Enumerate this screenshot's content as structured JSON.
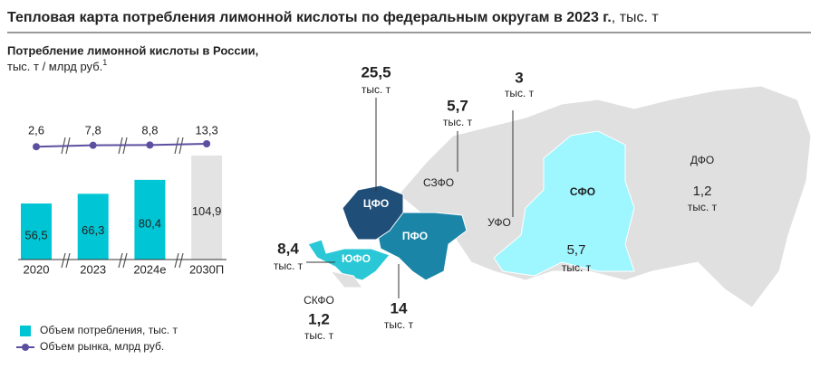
{
  "title": "Тепловая карта потребления лимонной кислоты по федеральным округам в 2023 г.",
  "title_unit": ", тыс. т",
  "chart_data": {
    "type": "bar",
    "title": "Потребление лимонной кислоты в России,",
    "subtitle": "тыс. т / млрд руб.",
    "footnote_ref": "1",
    "categories": [
      "2020",
      "2023",
      "2024е",
      "2030П"
    ],
    "series": [
      {
        "name": "Объем потребления, тыс. т",
        "type": "bar",
        "color": "#00c5d4",
        "colors": [
          "#00c5d4",
          "#00c5d4",
          "#00c5d4",
          "#e3e3e3"
        ],
        "values": [
          56.5,
          66.3,
          80.4,
          104.9
        ],
        "value_labels": [
          "56,5",
          "66,3",
          "80,4",
          "104,9"
        ]
      },
      {
        "name": "Объем рынка, млрд руб.",
        "type": "line",
        "color": "#5b4fa0",
        "values": [
          2.6,
          7.8,
          8.8,
          13.3
        ],
        "value_labels": [
          "2,6",
          "7,8",
          "8,8",
          "13,3"
        ]
      }
    ]
  },
  "map": {
    "unit": "тыс. т",
    "regions": [
      {
        "name": "ЦФО",
        "value": 25.5,
        "value_label": "25,5",
        "color": "#1f4e79"
      },
      {
        "name": "СЗФО",
        "value": 5.7,
        "value_label": "5,7",
        "color": "#e0e0e0"
      },
      {
        "name": "УФО",
        "value": 3,
        "value_label": "3",
        "color": "#e0e0e0"
      },
      {
        "name": "ПФО",
        "value": 14,
        "value_label": "14",
        "color": "#1a85a6"
      },
      {
        "name": "ЮФО",
        "value": 8.4,
        "value_label": "8,4",
        "color": "#2ac8d6"
      },
      {
        "name": "СКФО",
        "value": 1.2,
        "value_label": "1,2",
        "color": "#e0e0e0"
      },
      {
        "name": "СФО",
        "value": 5.7,
        "value_label": "5,7",
        "color": "#9ef6ff"
      },
      {
        "name": "ДФО",
        "value": 1.2,
        "value_label": "1,2",
        "color": "#e0e0e0"
      }
    ]
  }
}
